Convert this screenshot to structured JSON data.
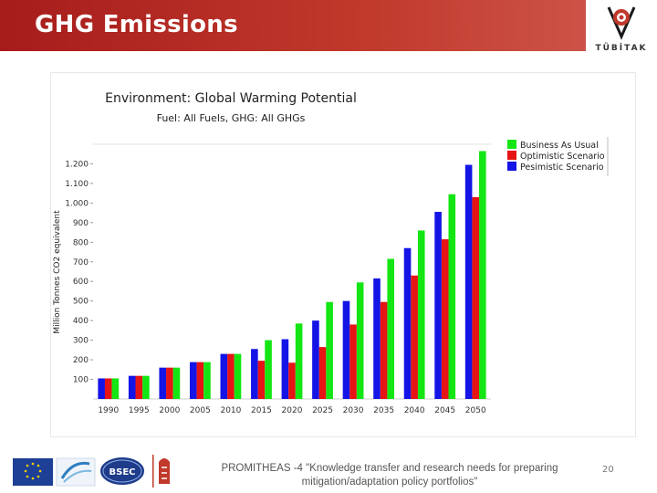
{
  "slide": {
    "title": "GHG Emissions",
    "brand": "TÜBİTAK",
    "footer_line1": "PROMITHEAS -4 \"Knowledge transfer and research needs for preparing",
    "footer_line2": "mitigation/adaptation policy portfolios\"",
    "page_number": "20",
    "header_color": "#b52a22"
  },
  "chart_data": {
    "type": "bar",
    "title": "Environment: Global Warming Potential",
    "subtitle": "Fuel: All Fuels, GHG: All GHGs",
    "xlabel": "",
    "ylabel": "Million Tonnes CO2 equivalent",
    "ylim": [
      0,
      1300
    ],
    "yticks": [
      100,
      200,
      300,
      400,
      500,
      600,
      700,
      800,
      900,
      1000,
      1100,
      1200
    ],
    "ytick_labels": [
      "100",
      "200",
      "300",
      "400",
      "500",
      "600",
      "700",
      "800",
      "900",
      "1.000",
      "1.100",
      "1.200"
    ],
    "categories": [
      "1990",
      "1995",
      "2000",
      "2005",
      "2010",
      "2015",
      "2020",
      "2025",
      "2030",
      "2035",
      "2040",
      "2045",
      "2050"
    ],
    "legend_position": "top-right",
    "series": [
      {
        "name": "Pesimistic Scenario",
        "color": "#1414e6",
        "values": [
          105,
          118,
          160,
          188,
          230,
          255,
          305,
          400,
          500,
          615,
          770,
          955,
          1195
        ]
      },
      {
        "name": "Optimistic Scenario",
        "color": "#e61414",
        "values": [
          105,
          118,
          160,
          188,
          230,
          195,
          185,
          265,
          380,
          495,
          630,
          815,
          1030
        ]
      },
      {
        "name": "Business As Usual",
        "color": "#14e614",
        "values": [
          105,
          118,
          160,
          188,
          230,
          300,
          385,
          495,
          595,
          715,
          860,
          1045,
          1265
        ]
      }
    ],
    "legend_order": [
      "Business As Usual",
      "Optimistic Scenario",
      "Pesimistic Scenario"
    ]
  }
}
